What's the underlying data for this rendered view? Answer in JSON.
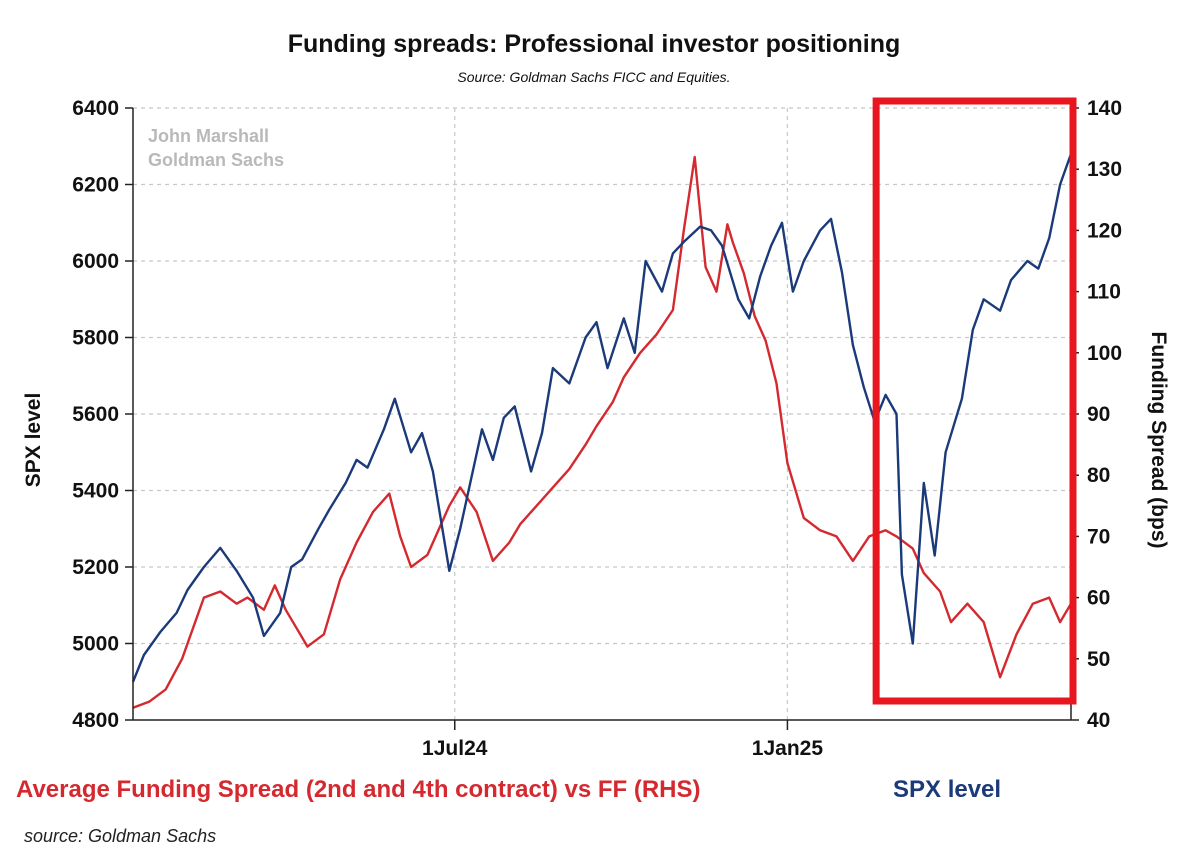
{
  "chart_data": {
    "type": "line",
    "title": "Funding spreads: Professional investor positioning",
    "subtitle": "Source: Goldman Sachs FICC and Equities.",
    "watermark": [
      "John Marshall",
      "Goldman Sachs"
    ],
    "footer_source": "source: Goldman Sachs",
    "x_tick_labels": [
      "1Jul24",
      "1Jan25"
    ],
    "x_range_months": [
      0,
      17.2
    ],
    "x_tick_positions_months": [
      5.9,
      12.0
    ],
    "left_axis": {
      "label": "SPX level",
      "range": [
        4800,
        6400
      ],
      "ticks": [
        "4800",
        "5000",
        "5200",
        "5400",
        "5600",
        "5800",
        "6000",
        "6200",
        "6400"
      ]
    },
    "right_axis": {
      "label": "Funding Spread (bps)",
      "range": [
        40,
        140
      ],
      "ticks": [
        "40",
        "50",
        "60",
        "70",
        "80",
        "90",
        "100",
        "110",
        "120",
        "130",
        "140"
      ]
    },
    "series": [
      {
        "name": "Average Funding Spread (2nd and 4th contract) vs FF (RHS)",
        "axis": "right",
        "color": "#d42a2f",
        "x": [
          0,
          0.3,
          0.6,
          0.9,
          1.1,
          1.3,
          1.6,
          1.9,
          2.1,
          2.4,
          2.6,
          2.8,
          3.0,
          3.2,
          3.5,
          3.8,
          4.1,
          4.4,
          4.7,
          4.9,
          5.1,
          5.4,
          5.6,
          5.8,
          6.0,
          6.3,
          6.6,
          6.9,
          7.1,
          7.4,
          7.7,
          8.0,
          8.3,
          8.5,
          8.8,
          9.0,
          9.3,
          9.6,
          9.9,
          10.1,
          10.3,
          10.5,
          10.7,
          10.9,
          11.0,
          11.2,
          11.4,
          11.6,
          11.8,
          12.0,
          12.3,
          12.6,
          12.9,
          13.2,
          13.5,
          13.8,
          14.0,
          14.3,
          14.5,
          14.8,
          15.0,
          15.3,
          15.6,
          15.9,
          16.2,
          16.5,
          16.8,
          17.0,
          17.2
        ],
        "values": [
          42,
          43,
          45,
          50,
          55,
          60,
          61,
          59,
          60,
          58,
          62,
          58,
          55,
          52,
          54,
          63,
          69,
          74,
          77,
          70,
          65,
          67,
          71,
          75,
          78,
          74,
          66,
          69,
          72,
          75,
          78,
          81,
          85,
          88,
          92,
          96,
          100,
          103,
          107,
          120,
          132,
          114,
          110,
          121,
          118,
          113,
          106,
          102,
          95,
          82,
          73,
          71,
          70,
          66,
          70,
          71,
          70,
          68,
          64,
          61,
          56,
          59,
          56,
          47,
          54,
          59,
          60,
          56,
          59
        ]
      },
      {
        "name": "SPX level",
        "axis": "left",
        "color": "#1b3a7a",
        "x": [
          0,
          0.2,
          0.5,
          0.8,
          1.0,
          1.3,
          1.6,
          1.9,
          2.2,
          2.4,
          2.7,
          2.9,
          3.1,
          3.4,
          3.6,
          3.9,
          4.1,
          4.3,
          4.6,
          4.8,
          5.1,
          5.3,
          5.5,
          5.8,
          6.0,
          6.2,
          6.4,
          6.6,
          6.8,
          7.0,
          7.3,
          7.5,
          7.7,
          8.0,
          8.3,
          8.5,
          8.7,
          9.0,
          9.2,
          9.4,
          9.7,
          9.9,
          10.1,
          10.4,
          10.6,
          10.8,
          11.1,
          11.3,
          11.5,
          11.7,
          11.9,
          12.1,
          12.3,
          12.6,
          12.8,
          13.0,
          13.2,
          13.4,
          13.6,
          13.8,
          14.0,
          14.1,
          14.3,
          14.5,
          14.7,
          14.9,
          15.2,
          15.4,
          15.6,
          15.9,
          16.1,
          16.4,
          16.6,
          16.8,
          17.0,
          17.2
        ],
        "values": [
          4900,
          4970,
          5030,
          5080,
          5140,
          5200,
          5250,
          5190,
          5120,
          5020,
          5080,
          5200,
          5220,
          5300,
          5350,
          5420,
          5480,
          5460,
          5560,
          5640,
          5500,
          5550,
          5450,
          5190,
          5300,
          5430,
          5560,
          5480,
          5590,
          5620,
          5450,
          5550,
          5720,
          5680,
          5800,
          5840,
          5720,
          5850,
          5760,
          6000,
          5920,
          6020,
          6050,
          6090,
          6080,
          6040,
          5900,
          5850,
          5960,
          6040,
          6100,
          5920,
          6000,
          6080,
          6110,
          5970,
          5780,
          5670,
          5580,
          5650,
          5600,
          5180,
          5000,
          5420,
          5230,
          5500,
          5640,
          5820,
          5900,
          5870,
          5950,
          6000,
          5980,
          6060,
          6200,
          6280
        ]
      }
    ],
    "highlight_box_x_range_months": [
      13.7,
      17.2
    ]
  }
}
